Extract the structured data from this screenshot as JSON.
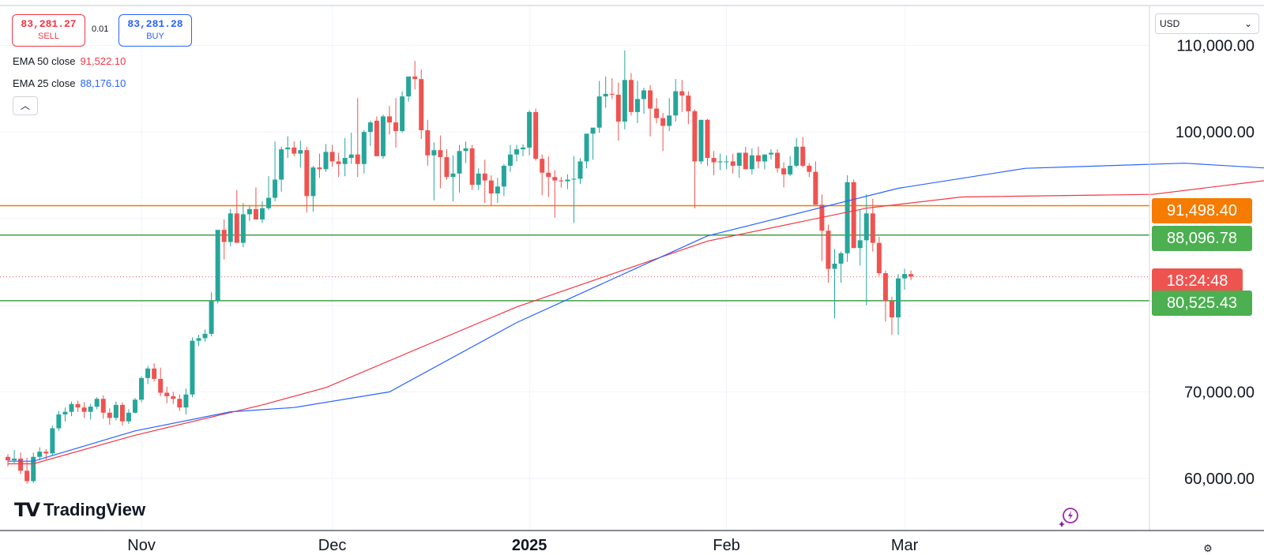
{
  "trade": {
    "sell_price": "83,281.27",
    "sell_label": "SELL",
    "spread": "0.01",
    "buy_price": "83,281.28",
    "buy_label": "BUY"
  },
  "legend": {
    "ema50_label": "EMA 50 close",
    "ema50_value": "91,522.10",
    "ema25_label": "EMA 25 close",
    "ema25_value": "88,176.10",
    "collapse_icon": "chevron-up-icon"
  },
  "currency": {
    "selected": "USD"
  },
  "branding": {
    "logo_mark": "TV",
    "logo_word": "TradingView"
  },
  "badges": {
    "orange_value": "91,498.40",
    "green_upper_value": "88,096.78",
    "countdown": "18:24:48",
    "green_lower_value": "80,525.43"
  },
  "colors": {
    "up": "#26a69a",
    "down": "#ef5350",
    "ema50": "#f23645",
    "ema25": "#2962ff",
    "hline_orange": "#f57c00",
    "hline_green": "#43a047"
  },
  "chart_data": {
    "type": "candlestick",
    "y_ticks": [
      "110,000.00",
      "100,000.00",
      "70,000.00",
      "60,000.00"
    ],
    "y_tick_values": [
      110000,
      100000,
      70000,
      60000
    ],
    "x_ticks": [
      "Nov",
      "Dec",
      "2025",
      "Feb",
      "Mar"
    ],
    "x_tick_dates": [
      "2024-11-01",
      "2024-12-01",
      "2025-01-01",
      "2025-02-01",
      "2025-03-01"
    ],
    "start_date": "2024-10-11",
    "ylim": [
      54000,
      114500
    ],
    "horizontal_lines": [
      {
        "value": 91498.4,
        "color": "#f57c00"
      },
      {
        "value": 88096.78,
        "color": "#43a047"
      },
      {
        "value": 80525.43,
        "color": "#43a047"
      }
    ],
    "last_price": 83281.27,
    "candles": [
      [
        62500,
        62800,
        61400,
        62100
      ],
      [
        62100,
        63300,
        61800,
        62300
      ],
      [
        62300,
        63000,
        60500,
        60900
      ],
      [
        60900,
        62400,
        59400,
        59700
      ],
      [
        59700,
        63000,
        59500,
        62500
      ],
      [
        62500,
        63600,
        62100,
        63100
      ],
      [
        63100,
        63400,
        62200,
        62900
      ],
      [
        62900,
        66100,
        62600,
        65800
      ],
      [
        65800,
        67800,
        65500,
        67400
      ],
      [
        67400,
        68200,
        66600,
        67700
      ],
      [
        67700,
        68900,
        67200,
        68600
      ],
      [
        68600,
        69000,
        67700,
        68200
      ],
      [
        68200,
        68800,
        67000,
        67700
      ],
      [
        67700,
        68600,
        66800,
        68300
      ],
      [
        68300,
        69400,
        68000,
        69200
      ],
      [
        69200,
        69600,
        66900,
        67600
      ],
      [
        67600,
        68100,
        66200,
        67000
      ],
      [
        67000,
        68900,
        66700,
        68500
      ],
      [
        68500,
        68800,
        66100,
        66600
      ],
      [
        66600,
        68000,
        66300,
        67600
      ],
      [
        67600,
        69300,
        67500,
        69100
      ],
      [
        69100,
        71800,
        68800,
        71600
      ],
      [
        71600,
        73000,
        70900,
        72700
      ],
      [
        72700,
        73300,
        71200,
        71500
      ],
      [
        71500,
        72800,
        69500,
        69900
      ],
      [
        69900,
        70600,
        68700,
        69500
      ],
      [
        69500,
        70000,
        68600,
        69200
      ],
      [
        69200,
        69700,
        67800,
        68200
      ],
      [
        68200,
        70400,
        67400,
        69700
      ],
      [
        69700,
        76300,
        69400,
        75900
      ],
      [
        75900,
        76600,
        75300,
        76200
      ],
      [
        76200,
        77200,
        75800,
        76700
      ],
      [
        76700,
        81500,
        76400,
        80500
      ],
      [
        80500,
        88400,
        80200,
        88700
      ],
      [
        88700,
        89900,
        85300,
        87300
      ],
      [
        87300,
        91100,
        86800,
        90600
      ],
      [
        90600,
        93300,
        87400,
        87200
      ],
      [
        87200,
        91800,
        86700,
        90500
      ],
      [
        90500,
        91500,
        89700,
        91100
      ],
      [
        91100,
        93600,
        90200,
        89900
      ],
      [
        89900,
        92000,
        89500,
        91200
      ],
      [
        91200,
        94900,
        91000,
        92400
      ],
      [
        92400,
        98900,
        92000,
        94500
      ],
      [
        94500,
        98300,
        93100,
        98000
      ],
      [
        98000,
        99500,
        97000,
        98200
      ],
      [
        98200,
        98900,
        97200,
        97500
      ],
      [
        97500,
        99000,
        95900,
        97900
      ],
      [
        97900,
        98300,
        90700,
        92600
      ],
      [
        92600,
        96100,
        90800,
        95900
      ],
      [
        95900,
        97500,
        94700,
        95700
      ],
      [
        95700,
        98600,
        95400,
        97700
      ],
      [
        97700,
        98500,
        96000,
        96600
      ],
      [
        96600,
        97600,
        94800,
        96300
      ],
      [
        96300,
        99300,
        94900,
        97000
      ],
      [
        97000,
        99900,
        96300,
        97400
      ],
      [
        97400,
        103900,
        94800,
        96300
      ],
      [
        96300,
        100200,
        95200,
        100000
      ],
      [
        100000,
        101300,
        98400,
        101100
      ],
      [
        101300,
        101800,
        97600,
        97200
      ],
      [
        97200,
        102000,
        96900,
        101800
      ],
      [
        101800,
        103000,
        99700,
        101100
      ],
      [
        101100,
        103900,
        98200,
        100100
      ],
      [
        100100,
        104700,
        99900,
        104100
      ],
      [
        104100,
        106300,
        103500,
        106400
      ],
      [
        106400,
        108200,
        104900,
        106100
      ],
      [
        106100,
        107200,
        99200,
        100200
      ],
      [
        100200,
        101400,
        96100,
        97300
      ],
      [
        97300,
        98800,
        92100,
        97900
      ],
      [
        97900,
        99600,
        93500,
        97100
      ],
      [
        97100,
        98000,
        94500,
        94800
      ],
      [
        94800,
        97300,
        92000,
        95200
      ],
      [
        95200,
        98500,
        93000,
        97800
      ],
      [
        97800,
        98900,
        96400,
        98100
      ],
      [
        98100,
        98500,
        93300,
        93900
      ],
      [
        93900,
        95800,
        93300,
        95200
      ],
      [
        95200,
        96800,
        91800,
        94400
      ],
      [
        94400,
        95000,
        91500,
        92900
      ],
      [
        92900,
        94700,
        91800,
        93700
      ],
      [
        93700,
        96300,
        92600,
        96100
      ],
      [
        96100,
        98500,
        95400,
        97400
      ],
      [
        97400,
        98500,
        96600,
        98000
      ],
      [
        98000,
        98600,
        97200,
        98200
      ],
      [
        98200,
        102500,
        97300,
        102300
      ],
      [
        102300,
        102700,
        96700,
        96900
      ],
      [
        96900,
        97400,
        92700,
        95300
      ],
      [
        95300,
        97200,
        92500,
        94800
      ],
      [
        94800,
        95600,
        90100,
        94400
      ],
      [
        94400,
        94800,
        93600,
        94300
      ],
      [
        94300,
        95100,
        93400,
        94500
      ],
      [
        94500,
        97200,
        89500,
        94600
      ],
      [
        94600,
        97000,
        94000,
        96600
      ],
      [
        96600,
        99800,
        95800,
        99800
      ],
      [
        99800,
        100400,
        96800,
        100500
      ],
      [
        100500,
        105900,
        99900,
        104100
      ],
      [
        104100,
        106400,
        102800,
        104400
      ],
      [
        104400,
        106200,
        103800,
        104300
      ],
      [
        104300,
        105700,
        99000,
        101200
      ],
      [
        101200,
        109400,
        100300,
        106000
      ],
      [
        106000,
        106800,
        101900,
        102300
      ],
      [
        102300,
        105900,
        101000,
        103800
      ],
      [
        103800,
        105100,
        102100,
        104800
      ],
      [
        104800,
        105400,
        99500,
        102700
      ],
      [
        102700,
        103900,
        101000,
        101600
      ],
      [
        101600,
        102200,
        97800,
        100700
      ],
      [
        100700,
        103900,
        100100,
        101900
      ],
      [
        101900,
        106100,
        101200,
        104700
      ],
      [
        104700,
        106000,
        102300,
        104200
      ],
      [
        104200,
        104700,
        100900,
        102400
      ],
      [
        102400,
        102600,
        91200,
        96600
      ],
      [
        96600,
        101400,
        96300,
        101400
      ],
      [
        101400,
        101500,
        96100,
        97000
      ],
      [
        97000,
        97800,
        95000,
        96500
      ],
      [
        96500,
        97500,
        95600,
        96600
      ],
      [
        96600,
        97300,
        95700,
        96600
      ],
      [
        96600,
        97500,
        95200,
        96100
      ],
      [
        96100,
        97000,
        94700,
        97600
      ],
      [
        97600,
        98300,
        95700,
        95700
      ],
      [
        95700,
        98100,
        95100,
        97300
      ],
      [
        97300,
        98300,
        95800,
        96600
      ],
      [
        96600,
        97000,
        95700,
        97400
      ],
      [
        97400,
        98000,
        96800,
        97600
      ],
      [
        97600,
        98000,
        95300,
        95800
      ],
      [
        95800,
        96500,
        93600,
        95100
      ],
      [
        95100,
        97200,
        94900,
        96100
      ],
      [
        96100,
        99300,
        95900,
        98300
      ],
      [
        98300,
        99400,
        95900,
        96100
      ],
      [
        96100,
        96400,
        94800,
        95400
      ],
      [
        95400,
        96600,
        91600,
        91600
      ],
      [
        91600,
        92800,
        85100,
        88600
      ],
      [
        88600,
        89300,
        82600,
        84200
      ],
      [
        84200,
        86500,
        78500,
        84800
      ],
      [
        84800,
        86200,
        82600,
        86000
      ],
      [
        86000,
        95000,
        85000,
        94200
      ],
      [
        94200,
        94500,
        86800,
        86600
      ],
      [
        86600,
        91000,
        84600,
        87500
      ],
      [
        87500,
        92800,
        80000,
        90600
      ],
      [
        90600,
        92300,
        86200,
        87200
      ],
      [
        87200,
        87900,
        83400,
        83700
      ],
      [
        83700,
        84000,
        78100,
        80500
      ],
      [
        80500,
        81000,
        76600,
        78600
      ],
      [
        78600,
        83600,
        76600,
        83100
      ],
      [
        83100,
        84200,
        81800,
        83600
      ],
      [
        83600,
        84000,
        82900,
        83300
      ]
    ],
    "ema50": [
      [
        0,
        61700
      ],
      [
        4,
        61700
      ],
      [
        20,
        65000
      ],
      [
        40,
        68500
      ],
      [
        50,
        70500
      ],
      [
        80,
        79800
      ],
      [
        110,
        87400
      ],
      [
        135,
        91200
      ],
      [
        150,
        92500
      ],
      [
        180,
        92800
      ],
      [
        210,
        95500
      ],
      [
        240,
        99000
      ],
      [
        270,
        98200
      ],
      [
        285,
        96000
      ],
      [
        300,
        94700
      ],
      [
        315,
        93200
      ],
      [
        330,
        91500
      ]
    ],
    "ema25": [
      [
        0,
        62000
      ],
      [
        4,
        62000
      ],
      [
        20,
        65500
      ],
      [
        35,
        67700
      ],
      [
        45,
        68200
      ],
      [
        60,
        70000
      ],
      [
        80,
        78000
      ],
      [
        110,
        88000
      ],
      [
        140,
        93500
      ],
      [
        160,
        95800
      ],
      [
        185,
        96400
      ],
      [
        210,
        95300
      ],
      [
        240,
        99800
      ],
      [
        255,
        101100
      ],
      [
        275,
        99600
      ],
      [
        300,
        98700
      ],
      [
        315,
        97000
      ],
      [
        330,
        88200
      ]
    ]
  }
}
